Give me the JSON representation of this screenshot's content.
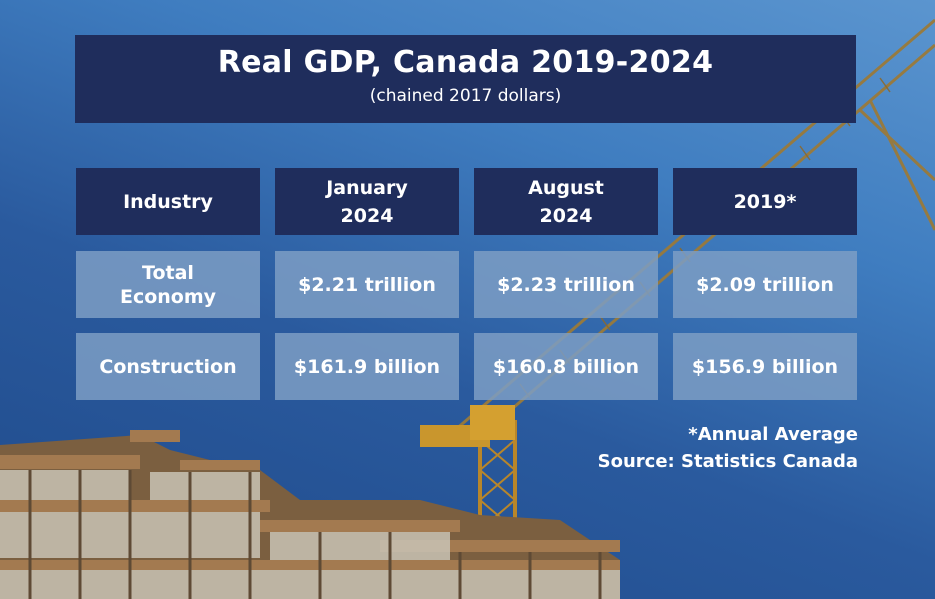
{
  "chart_data": {
    "type": "table",
    "title": "Real GDP, Canada 2019-2024",
    "subtitle": "(chained 2017 dollars)",
    "columns": [
      {
        "line1": "Industry",
        "line2": ""
      },
      {
        "line1": "January",
        "line2": "2024"
      },
      {
        "line1": "August",
        "line2": "2024"
      },
      {
        "line1": "2019*",
        "line2": ""
      }
    ],
    "rows": [
      {
        "label_line1": "Total",
        "label_line2": "Economy",
        "values": [
          "$2.21 trillion",
          "$2.23 trillion",
          "$2.09 trillion"
        ]
      },
      {
        "label_line1": "Construction",
        "label_line2": "",
        "values": [
          "$161.9 billion",
          "$160.8 billion",
          "$156.9 billion"
        ]
      }
    ],
    "footnote": "*Annual Average",
    "source": "Source: Statistics Canada"
  },
  "colors": {
    "header_bg": "#1f2d5c",
    "cell_bg": "#7c9ec4",
    "text": "#ffffff"
  }
}
